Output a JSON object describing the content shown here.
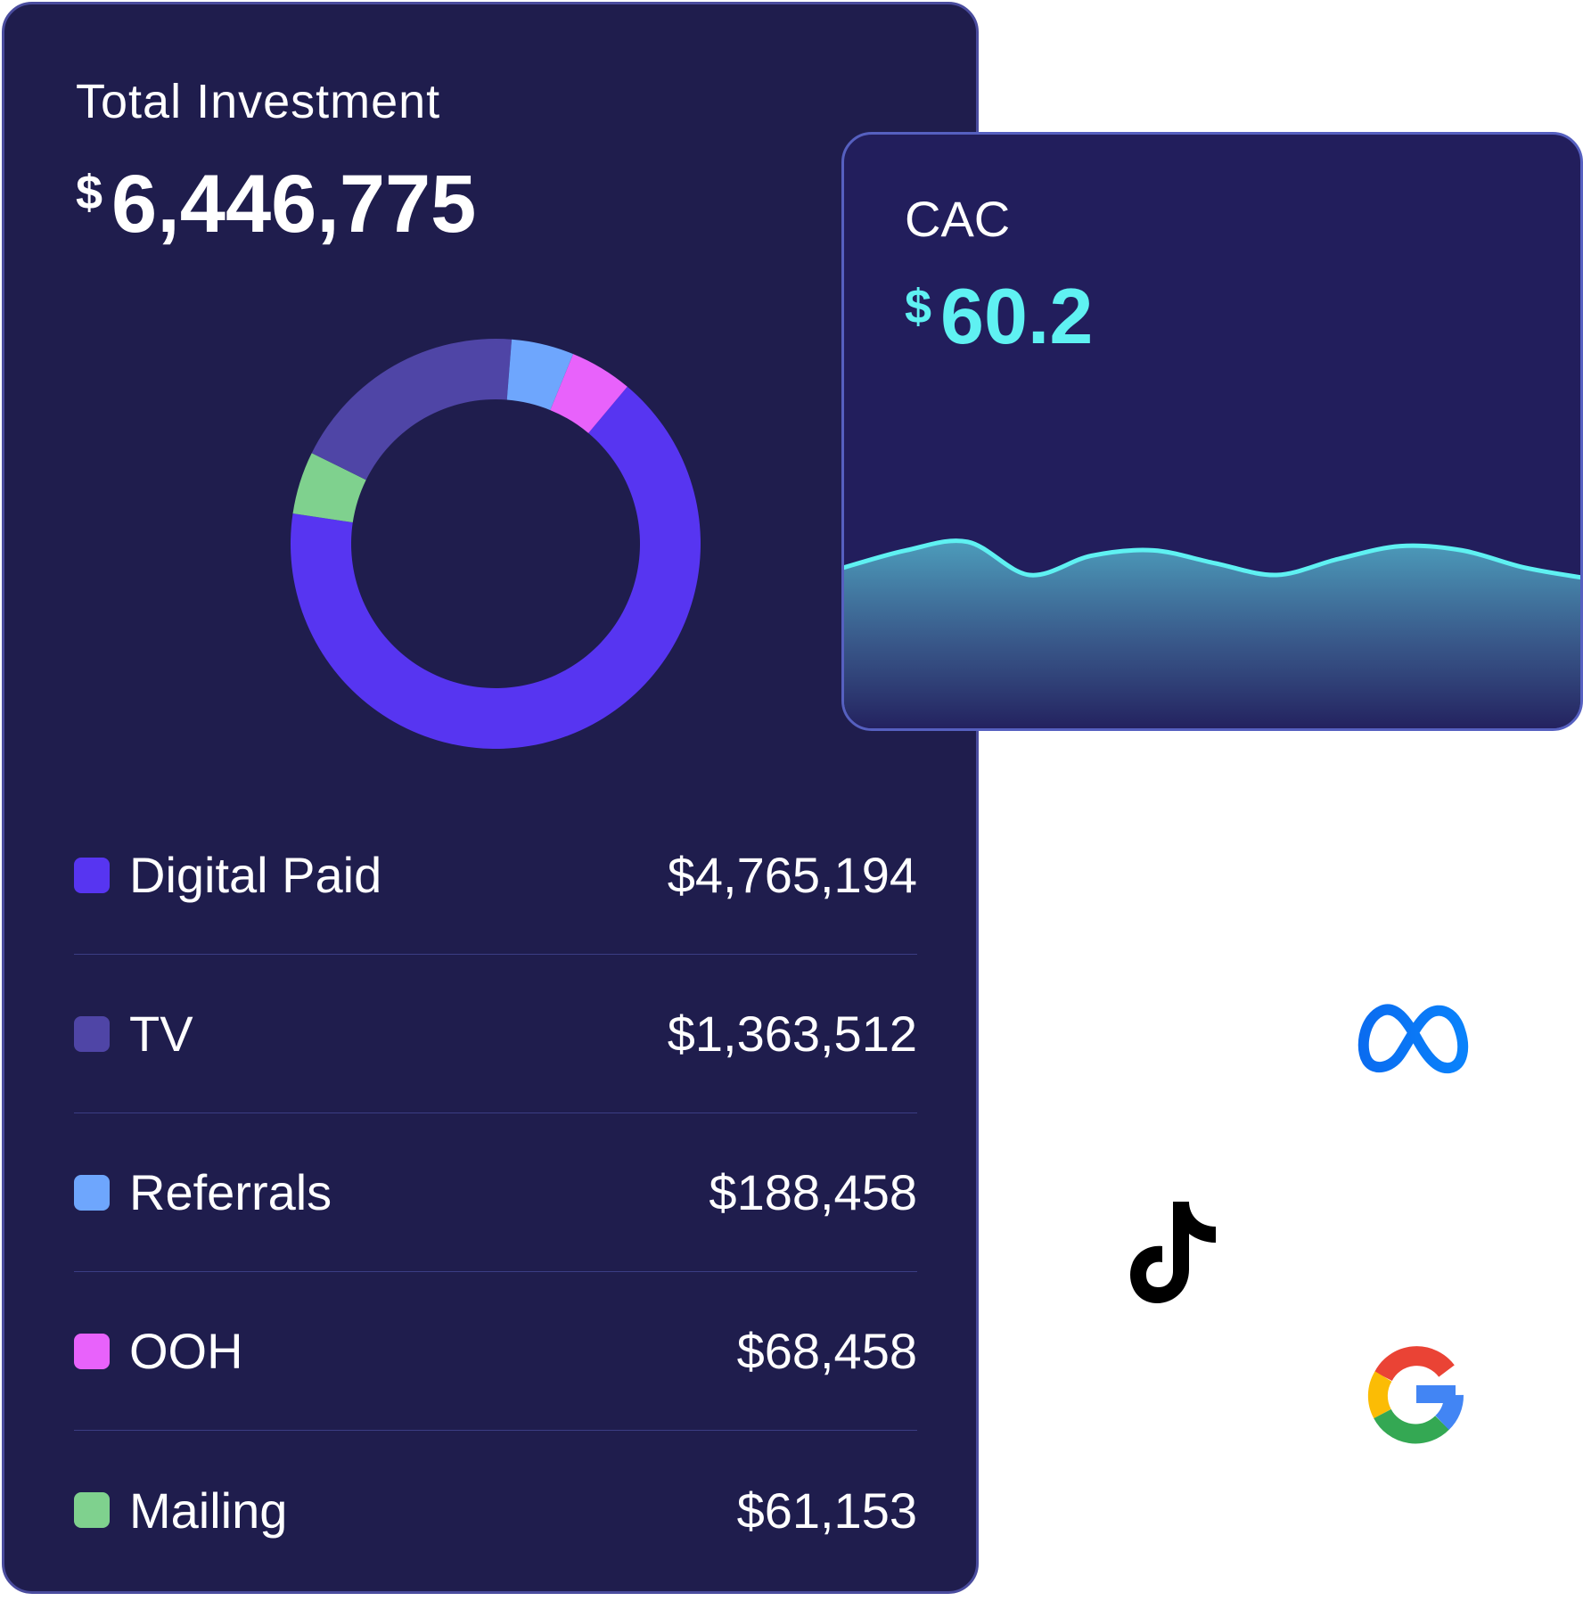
{
  "investment": {
    "title": "Total Investment",
    "currency": "$",
    "total": "6,446,775",
    "breakdown": [
      {
        "label": "Digital Paid",
        "value": "$4,765,194",
        "amount": 4765194,
        "color": "#5735f1"
      },
      {
        "label": "TV",
        "value": "$1,363,512",
        "amount": 1363512,
        "color": "#4f45a6"
      },
      {
        "label": "Referrals",
        "value": "$188,458",
        "amount": 188458,
        "color": "#6ea6fd"
      },
      {
        "label": "OOH",
        "value": "$68,458",
        "amount": 68458,
        "color": "#e862fb"
      },
      {
        "label": "Mailing",
        "value": "$61,153",
        "amount": 61153,
        "color": "#7fd18e"
      }
    ]
  },
  "cac": {
    "title": "CAC",
    "currency": "$",
    "value": "60.2",
    "line_color": "#5ff1f2",
    "trend": [
      0.62,
      0.78,
      0.86,
      0.55,
      0.73,
      0.78,
      0.66,
      0.55,
      0.7,
      0.82,
      0.78,
      0.62,
      0.52
    ]
  },
  "brands": {
    "meta_icon": "meta-icon",
    "tiktok_icon": "tiktok-icon",
    "google_icon": "google-icon"
  }
}
